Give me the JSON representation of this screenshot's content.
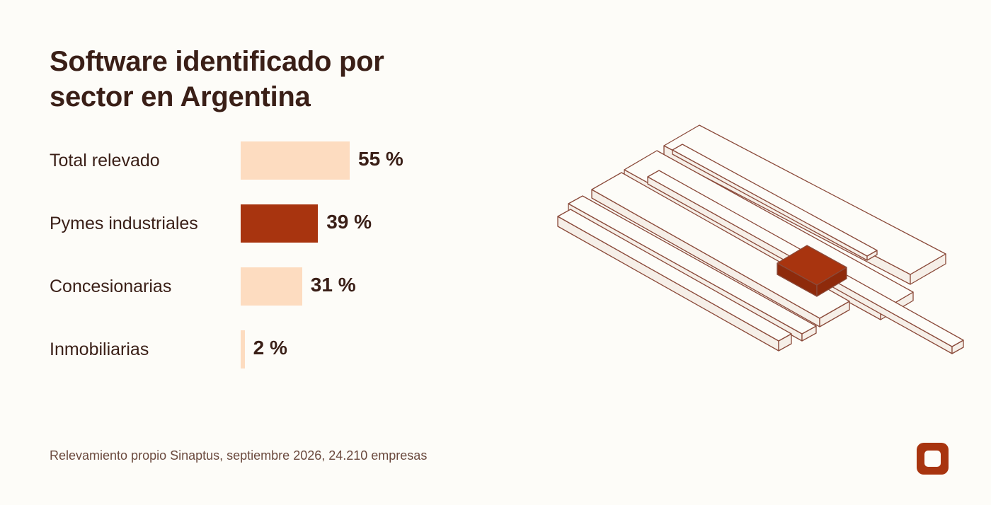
{
  "chart_data": {
    "type": "bar",
    "orientation": "horizontal",
    "title": "Software identificado por sector en Argentina",
    "categories": [
      "Total relevado",
      "Pymes industriales",
      "Concesionarias",
      "Inmobiliarias"
    ],
    "values": [
      55,
      39,
      31,
      2
    ],
    "value_labels": [
      "55 %",
      "39 %",
      "31 %",
      "2 %"
    ],
    "colors": [
      "#fddcc0",
      "#a8340f",
      "#fddcc0",
      "#fddcc0"
    ],
    "source": "Relevamiento propio Sinaptus, septiembre 2026, 24.210 empresas"
  }
}
